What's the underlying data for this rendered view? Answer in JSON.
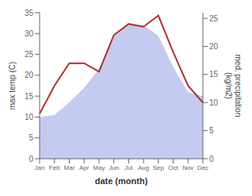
{
  "chart_data": {
    "type": "area",
    "categories": [
      "Jan",
      "Feb",
      "Mar",
      "Apr",
      "May",
      "Jun",
      "Jul",
      "Aug",
      "Sep",
      "Oct",
      "Nov",
      "Dec"
    ],
    "xlabel": "date (month)",
    "ylabel": "max temp (C)",
    "y2label": "med. precipitation\n(kg/m2)",
    "series": [
      {
        "type": "area",
        "color": "#c5caf0",
        "values": [
          10.0,
          10.5,
          13.5,
          17.0,
          21.5,
          30.0,
          32.0,
          32.0,
          29.5,
          22.0,
          16.0,
          15.0
        ]
      },
      {
        "type": "line",
        "color": "#b03030",
        "axis": "y2",
        "values": [
          8.0,
          13.0,
          17.0,
          17.0,
          15.5,
          22.0,
          24.0,
          23.5,
          25.5,
          19.0,
          13.0,
          10.0
        ]
      }
    ],
    "ylim": [
      0,
      35
    ],
    "yticks": [
      0,
      5,
      10,
      15,
      20,
      25,
      30,
      35
    ],
    "y2lim": [
      0,
      26
    ],
    "y2ticks": [
      0,
      5,
      10,
      15,
      20,
      25
    ],
    "grid": false
  }
}
